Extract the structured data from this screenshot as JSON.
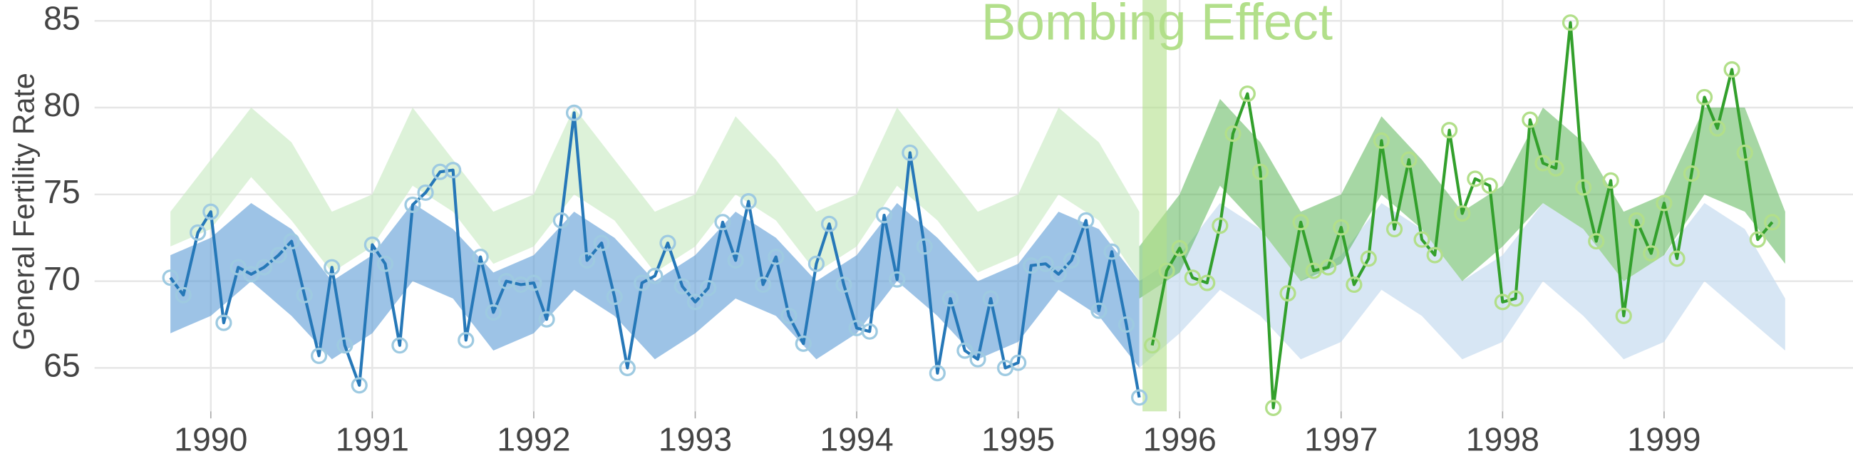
{
  "chart_data": {
    "type": "line",
    "annotation": "Bombing Effect",
    "event_span": [
      1995.77,
      1995.92
    ],
    "event_color": "#b2df8a",
    "y_label": "General Fertility Rate",
    "xlim": [
      1989.28,
      2000.17
    ],
    "ylim": [
      62.5,
      86.2
    ],
    "xticks": [
      1990,
      1991,
      1992,
      1993,
      1994,
      1995,
      1996,
      1997,
      1998,
      1999
    ],
    "yticks": [
      65,
      70,
      75,
      80,
      85
    ],
    "grid": true,
    "bands": [
      {
        "color": "#c7e9c0",
        "opacity": 0.6,
        "x": [
          1989.75,
          1990,
          1990.25,
          1990.5,
          1990.75,
          1991,
          1991.25,
          1991.5,
          1991.75,
          1992,
          1992.25,
          1992.5,
          1992.75,
          1993,
          1993.25,
          1993.5,
          1993.75,
          1994,
          1994.25,
          1994.5,
          1994.75,
          1995,
          1995.25,
          1995.5,
          1995.75
        ],
        "lower": [
          72,
          73,
          76,
          73.5,
          70.5,
          72,
          75.5,
          74,
          71,
          72,
          75,
          73.5,
          70.5,
          72,
          75,
          73.5,
          70.5,
          72,
          75.5,
          73.5,
          70.5,
          71.5,
          75,
          73.5,
          70
        ],
        "upper": [
          74,
          77,
          80,
          78,
          74,
          75,
          80,
          77,
          74,
          75,
          80,
          77,
          74,
          75,
          79.5,
          77,
          74,
          75,
          80,
          77,
          74,
          75,
          80,
          78,
          74
        ]
      },
      {
        "color": "#c6dbef",
        "opacity": 0.7,
        "x": [
          1995.75,
          1996,
          1996.25,
          1996.5,
          1996.75,
          1997,
          1997.25,
          1997.5,
          1997.75,
          1998,
          1998.25,
          1998.5,
          1998.75,
          1999,
          1999.25,
          1999.5,
          1999.75
        ],
        "lower": [
          65,
          67,
          69.5,
          68,
          65.5,
          66.5,
          69.5,
          68,
          65.5,
          66.5,
          70,
          68,
          65.5,
          66.5,
          70,
          68,
          66
        ],
        "upper": [
          70,
          71.5,
          74.5,
          73,
          70,
          71.5,
          74.5,
          73,
          70,
          71.5,
          74.5,
          73,
          70,
          71.5,
          74.5,
          73,
          69
        ]
      },
      {
        "color": "#5b9bd5",
        "opacity": 0.6,
        "x": [
          1989.75,
          1990,
          1990.25,
          1990.5,
          1990.75,
          1991,
          1991.25,
          1991.5,
          1991.75,
          1992,
          1992.25,
          1992.5,
          1992.75,
          1993,
          1993.25,
          1993.5,
          1993.75,
          1994,
          1994.25,
          1994.5,
          1994.75,
          1995,
          1995.25,
          1995.5,
          1995.75
        ],
        "lower": [
          67,
          68,
          70,
          68,
          65.5,
          67,
          70,
          69,
          66,
          67,
          69.5,
          68,
          65.5,
          67,
          69,
          68,
          65.5,
          67,
          70,
          68,
          65.5,
          66.5,
          69.5,
          68,
          65
        ],
        "upper": [
          71.5,
          72.5,
          74.5,
          73,
          70,
          71.5,
          74.5,
          73,
          70.5,
          71.5,
          74,
          72.5,
          70,
          71.5,
          74,
          72.5,
          70,
          71.5,
          74.5,
          72.5,
          70,
          71,
          74,
          73,
          70
        ]
      },
      {
        "color": "#4daf4a",
        "opacity": 0.5,
        "x": [
          1995.75,
          1996,
          1996.25,
          1996.5,
          1996.75,
          1997,
          1997.25,
          1997.5,
          1997.75,
          1998,
          1998.25,
          1998.5,
          1998.75,
          1999,
          1999.25,
          1999.5,
          1999.75
        ],
        "lower": [
          69,
          70.5,
          75.5,
          73,
          70,
          71,
          75,
          73,
          70,
          72,
          74.5,
          73,
          70,
          71.5,
          75,
          74,
          71
        ],
        "upper": [
          72,
          75,
          80.5,
          78,
          74,
          75,
          79.5,
          77,
          74,
          75.5,
          80,
          78,
          74,
          75,
          80,
          80,
          74
        ]
      }
    ],
    "series": [
      {
        "color": "#2678b8",
        "marker_color": "#9ecae1",
        "x": [
          1989.75,
          1989.83,
          1989.92,
          1990,
          1990.08,
          1990.17,
          1990.25,
          1990.33,
          1990.42,
          1990.5,
          1990.58,
          1990.67,
          1990.75,
          1990.83,
          1990.92,
          1991,
          1991.08,
          1991.17,
          1991.25,
          1991.33,
          1991.42,
          1991.5,
          1991.58,
          1991.67,
          1991.75,
          1991.83,
          1991.92,
          1992,
          1992.08,
          1992.17,
          1992.25,
          1992.33,
          1992.42,
          1992.5,
          1992.58,
          1992.67,
          1992.75,
          1992.83,
          1992.92,
          1993,
          1993.08,
          1993.17,
          1993.25,
          1993.33,
          1993.42,
          1993.5,
          1993.58,
          1993.67,
          1993.75,
          1993.83,
          1993.92,
          1994,
          1994.08,
          1994.17,
          1994.25,
          1994.33,
          1994.42,
          1994.5,
          1994.58,
          1994.67,
          1994.75,
          1994.83,
          1994.92,
          1995,
          1995.08,
          1995.17,
          1995.25,
          1995.33,
          1995.42,
          1995.5,
          1995.58,
          1995.67,
          1995.75
        ],
        "values": [
          70.2,
          69.2,
          72.8,
          74.0,
          67.6,
          70.8,
          70.4,
          70.8,
          71.5,
          72.3,
          69.2,
          65.7,
          70.8,
          66.3,
          64.0,
          72.1,
          71.0,
          66.3,
          74.4,
          75.1,
          76.3,
          76.4,
          66.6,
          71.4,
          68.2,
          70.0,
          69.8,
          69.9,
          67.8,
          73.5,
          79.7,
          71.2,
          72.2,
          69.1,
          65.0,
          69.9,
          70.3,
          72.2,
          69.7,
          68.8,
          69.6,
          73.4,
          71.2,
          74.6,
          69.8,
          71.4,
          68.0,
          66.4,
          71.0,
          73.3,
          69.8,
          67.3,
          67.1,
          73.8,
          70.1,
          77.4,
          72.0,
          64.7,
          69.0,
          66.0,
          65.5,
          69.0,
          65.0,
          65.3,
          70.9,
          71.0,
          70.4,
          71.2,
          73.5,
          68.3,
          71.7,
          67.5,
          63.3
        ]
      },
      {
        "color": "#33a02c",
        "marker_color": "#b2df8a",
        "x": [
          1995.83,
          1995.92,
          1996,
          1996.08,
          1996.17,
          1996.25,
          1996.33,
          1996.42,
          1996.5,
          1996.58,
          1996.67,
          1996.75,
          1996.83,
          1996.92,
          1997,
          1997.08,
          1997.17,
          1997.25,
          1997.33,
          1997.42,
          1997.5,
          1997.58,
          1997.67,
          1997.75,
          1997.83,
          1997.92,
          1998,
          1998.08,
          1998.17,
          1998.25,
          1998.33,
          1998.42,
          1998.5,
          1998.58,
          1998.67,
          1998.75,
          1998.83,
          1998.92,
          1999,
          1999.08,
          1999.17,
          1999.25,
          1999.33,
          1999.42,
          1999.5,
          1999.58,
          1999.67
        ],
        "values": [
          66.3,
          70.6,
          71.9,
          70.2,
          69.9,
          73.2,
          78.5,
          80.8,
          76.3,
          62.7,
          69.3,
          73.4,
          70.6,
          70.8,
          73.1,
          69.8,
          71.3,
          78.1,
          73.0,
          77.0,
          72.4,
          71.5,
          78.7,
          73.9,
          75.9,
          75.5,
          68.8,
          69.0,
          79.3,
          76.8,
          76.5,
          84.9,
          75.4,
          72.3,
          75.8,
          68.0,
          73.5,
          71.6,
          74.5,
          71.3,
          76.2,
          80.6,
          78.8,
          82.2,
          77.4,
          72.4,
          73.4
        ]
      }
    ]
  }
}
